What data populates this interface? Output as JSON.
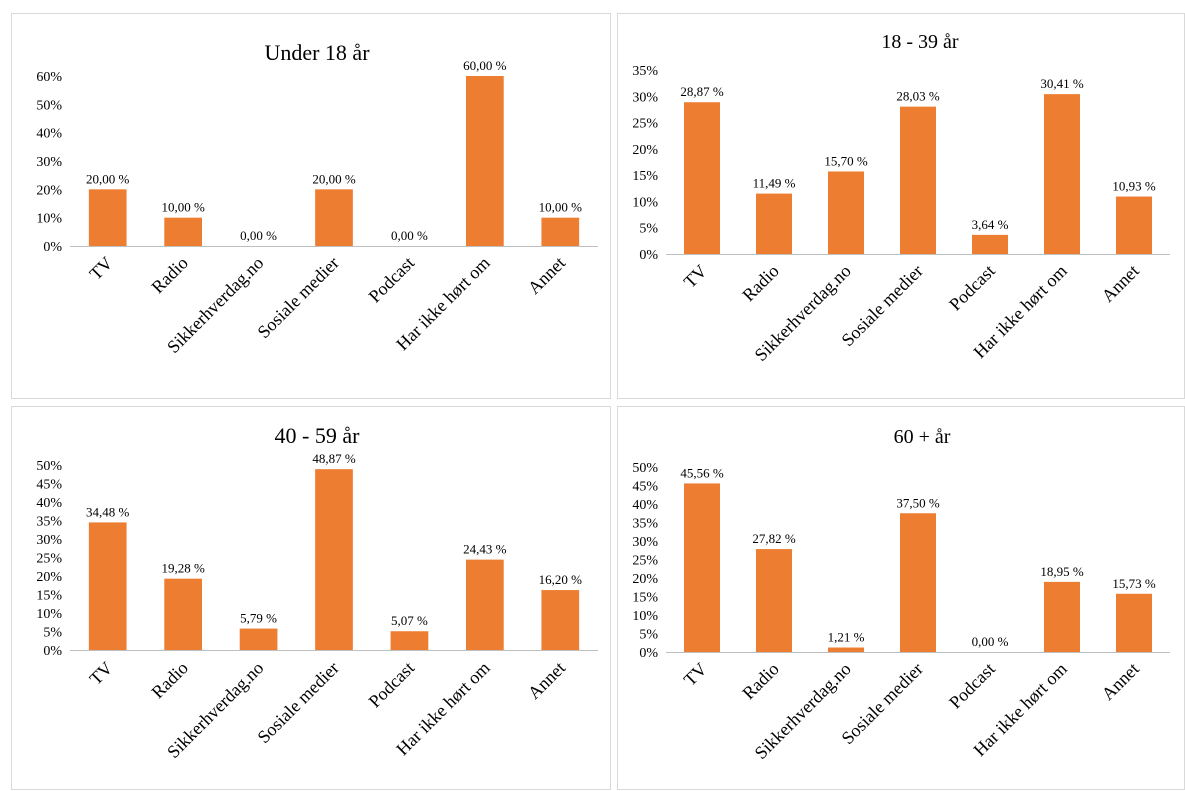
{
  "colors": {
    "bar": "#ED7D31",
    "axis": "#BFBFBF",
    "text": "#000000"
  },
  "chart_data": [
    {
      "type": "bar",
      "title": "Under 18 år",
      "categories": [
        "TV",
        "Radio",
        "Sikkerhverdag.no",
        "Sosiale medier",
        "Podcast",
        "Har ikke hørt om",
        "Annet"
      ],
      "values": [
        20.0,
        10.0,
        0.0,
        20.0,
        0.0,
        60.0,
        10.0
      ],
      "data_labels": [
        "20,00 %",
        "10,00 %",
        "0,00 %",
        "20,00 %",
        "0,00 %",
        "60,00 %",
        "10,00 %"
      ],
      "yticks": [
        "0%",
        "10%",
        "20%",
        "30%",
        "40%",
        "50%",
        "60%"
      ],
      "ylim": [
        0,
        60
      ],
      "grid": false,
      "legend": "none"
    },
    {
      "type": "bar",
      "title": "18 - 39 år",
      "categories": [
        "TV",
        "Radio",
        "Sikkerhverdag.no",
        "Sosiale medier",
        "Podcast",
        "Har ikke hørt om",
        "Annet"
      ],
      "values": [
        28.87,
        11.49,
        15.7,
        28.03,
        3.64,
        30.41,
        10.93
      ],
      "data_labels": [
        "28,87 %",
        "11,49 %",
        "15,70 %",
        "28,03 %",
        "3,64 %",
        "30,41 %",
        "10,93 %"
      ],
      "yticks": [
        "0%",
        "5%",
        "10%",
        "15%",
        "20%",
        "25%",
        "30%",
        "35%"
      ],
      "ylim": [
        0,
        35
      ],
      "grid": false,
      "legend": "none"
    },
    {
      "type": "bar",
      "title": "40 - 59 år",
      "categories": [
        "TV",
        "Radio",
        "Sikkerhverdag.no",
        "Sosiale medier",
        "Podcast",
        "Har ikke hørt om",
        "Annet"
      ],
      "values": [
        34.48,
        19.28,
        5.79,
        48.87,
        5.07,
        24.43,
        16.2
      ],
      "data_labels": [
        "34,48 %",
        "19,28 %",
        "5,79 %",
        "48,87 %",
        "5,07 %",
        "24,43 %",
        "16,20 %"
      ],
      "yticks": [
        "0%",
        "5%",
        "10%",
        "15%",
        "20%",
        "25%",
        "30%",
        "35%",
        "40%",
        "45%",
        "50%"
      ],
      "ylim": [
        0,
        50
      ],
      "grid": false,
      "legend": "none"
    },
    {
      "type": "bar",
      "title": "60 + år",
      "categories": [
        "TV",
        "Radio",
        "Sikkerhverdag.no",
        "Sosiale medier",
        "Podcast",
        "Har ikke hørt om",
        "Annet"
      ],
      "values": [
        45.56,
        27.82,
        1.21,
        37.5,
        0.0,
        18.95,
        15.73
      ],
      "data_labels": [
        "45,56 %",
        "27,82 %",
        "1,21 %",
        "37,50 %",
        "0,00 %",
        "18,95 %",
        "15,73 %"
      ],
      "yticks": [
        "0%",
        "5%",
        "10%",
        "15%",
        "20%",
        "25%",
        "30%",
        "35%",
        "40%",
        "45%",
        "50%"
      ],
      "ylim": [
        0,
        50
      ],
      "grid": false,
      "legend": "none"
    }
  ]
}
